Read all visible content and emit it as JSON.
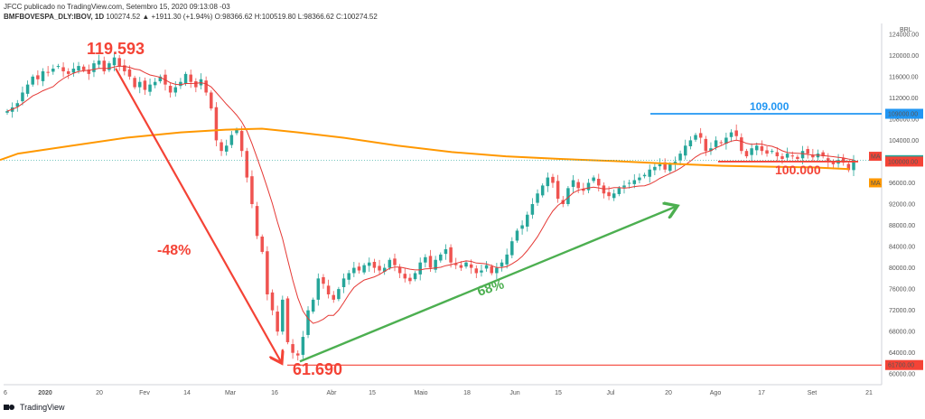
{
  "header": {
    "line1": "JFCC publicado no TradingView.com, Setembro 15, 2020 09:13:08 -03",
    "symbol": "BMFBOVESPA_DLY:IBOV, 1D",
    "quote": "100274.52 ▲ +1911.30 (+1.94%) O:98366.62 H:100519.80 L:98366.62 C:100274.52"
  },
  "footer": {
    "brand": "TradingView"
  },
  "colors": {
    "up": "#26a69a",
    "down": "#ef5350",
    "ma_short": "#e53935",
    "ma_long": "#ff9800",
    "resistance": "#2196f3",
    "support": "#f44336",
    "rally": "#4caf50"
  },
  "chart_data": {
    "type": "candlestick",
    "currency": "BRL",
    "x_ticks": [
      "6",
      "2020",
      "20",
      "Fev",
      "14",
      "Mar",
      "16",
      "Abr",
      "15",
      "Maio",
      "18",
      "Jun",
      "15",
      "Jul",
      "20",
      "Ago",
      "17",
      "Set",
      "21"
    ],
    "y_ticks": [
      60000,
      64000,
      68000,
      72000,
      76000,
      80000,
      84000,
      88000,
      92000,
      96000,
      100000,
      104000,
      108000,
      112000,
      116000,
      120000,
      124000
    ],
    "ylim": [
      58000,
      126000
    ],
    "close_series": [
      109500,
      110200,
      111000,
      113000,
      114500,
      116000,
      115500,
      117000,
      116800,
      117500,
      118000,
      117000,
      116500,
      117500,
      118000,
      117200,
      116500,
      118500,
      119000,
      117000,
      118500,
      119600,
      118000,
      117000,
      116000,
      114000,
      115000,
      113500,
      114500,
      115000,
      116000,
      114500,
      113000,
      114000,
      115000,
      116500,
      115000,
      114000,
      115500,
      113000,
      110000,
      104000,
      102000,
      103000,
      105000,
      106000,
      102000,
      97000,
      92000,
      86000,
      83000,
      75000,
      72000,
      68000,
      74000,
      66000,
      64000,
      63500,
      67000,
      72000,
      74000,
      78000,
      77000,
      75000,
      74000,
      76000,
      78000,
      79000,
      80000,
      79500,
      80500,
      81000,
      80000,
      79500,
      80000,
      81500,
      80500,
      79000,
      78000,
      77500,
      79000,
      81000,
      82000,
      80000,
      81500,
      82500,
      83500,
      81000,
      80500,
      80000,
      81000,
      80000,
      79000,
      79500,
      80500,
      79000,
      80000,
      81000,
      82500,
      85000,
      87000,
      88000,
      90000,
      92000,
      94000,
      95500,
      97000,
      96000,
      93000,
      92000,
      95000,
      96500,
      95000,
      94500,
      96000,
      97000,
      95500,
      94000,
      93500,
      94000,
      95000,
      95500,
      96000,
      96500,
      97000,
      97500,
      98500,
      99000,
      99500,
      98500,
      99500,
      100000,
      101500,
      103000,
      104000,
      105000,
      104500,
      102000,
      102500,
      104000,
      103500,
      104500,
      105500,
      104800,
      102000,
      101000,
      102500,
      103000,
      102000,
      101500,
      102000,
      101000,
      100500,
      101500,
      101000,
      100500,
      102000,
      101500,
      100800,
      101500,
      101000,
      100000,
      99500,
      100300,
      99800,
      98400,
      100275
    ],
    "annotations": [
      {
        "text": "119.593",
        "value": 119593
      },
      {
        "text": "61.690",
        "value": 61690
      },
      {
        "text": "-48%"
      },
      {
        "text": "68%"
      },
      {
        "text": "109.000",
        "value": 109000
      },
      {
        "text": "100.000",
        "value": 100000
      }
    ],
    "price_labels": [
      {
        "text": "109000.00",
        "value": 109000,
        "color": "#2196f3"
      },
      {
        "text": "100274.52",
        "value": 100274.52,
        "color": "#26a69a"
      },
      {
        "text": "100000.00",
        "value": 100000,
        "color": "#f44336"
      },
      {
        "text": "61700.00",
        "value": 61700,
        "color": "#f44336"
      }
    ],
    "ma_labels": [
      {
        "text": "MA",
        "value": 101000,
        "color": "#f44336"
      },
      {
        "text": "MA",
        "value": 96000,
        "color": "#ff9800"
      }
    ]
  }
}
